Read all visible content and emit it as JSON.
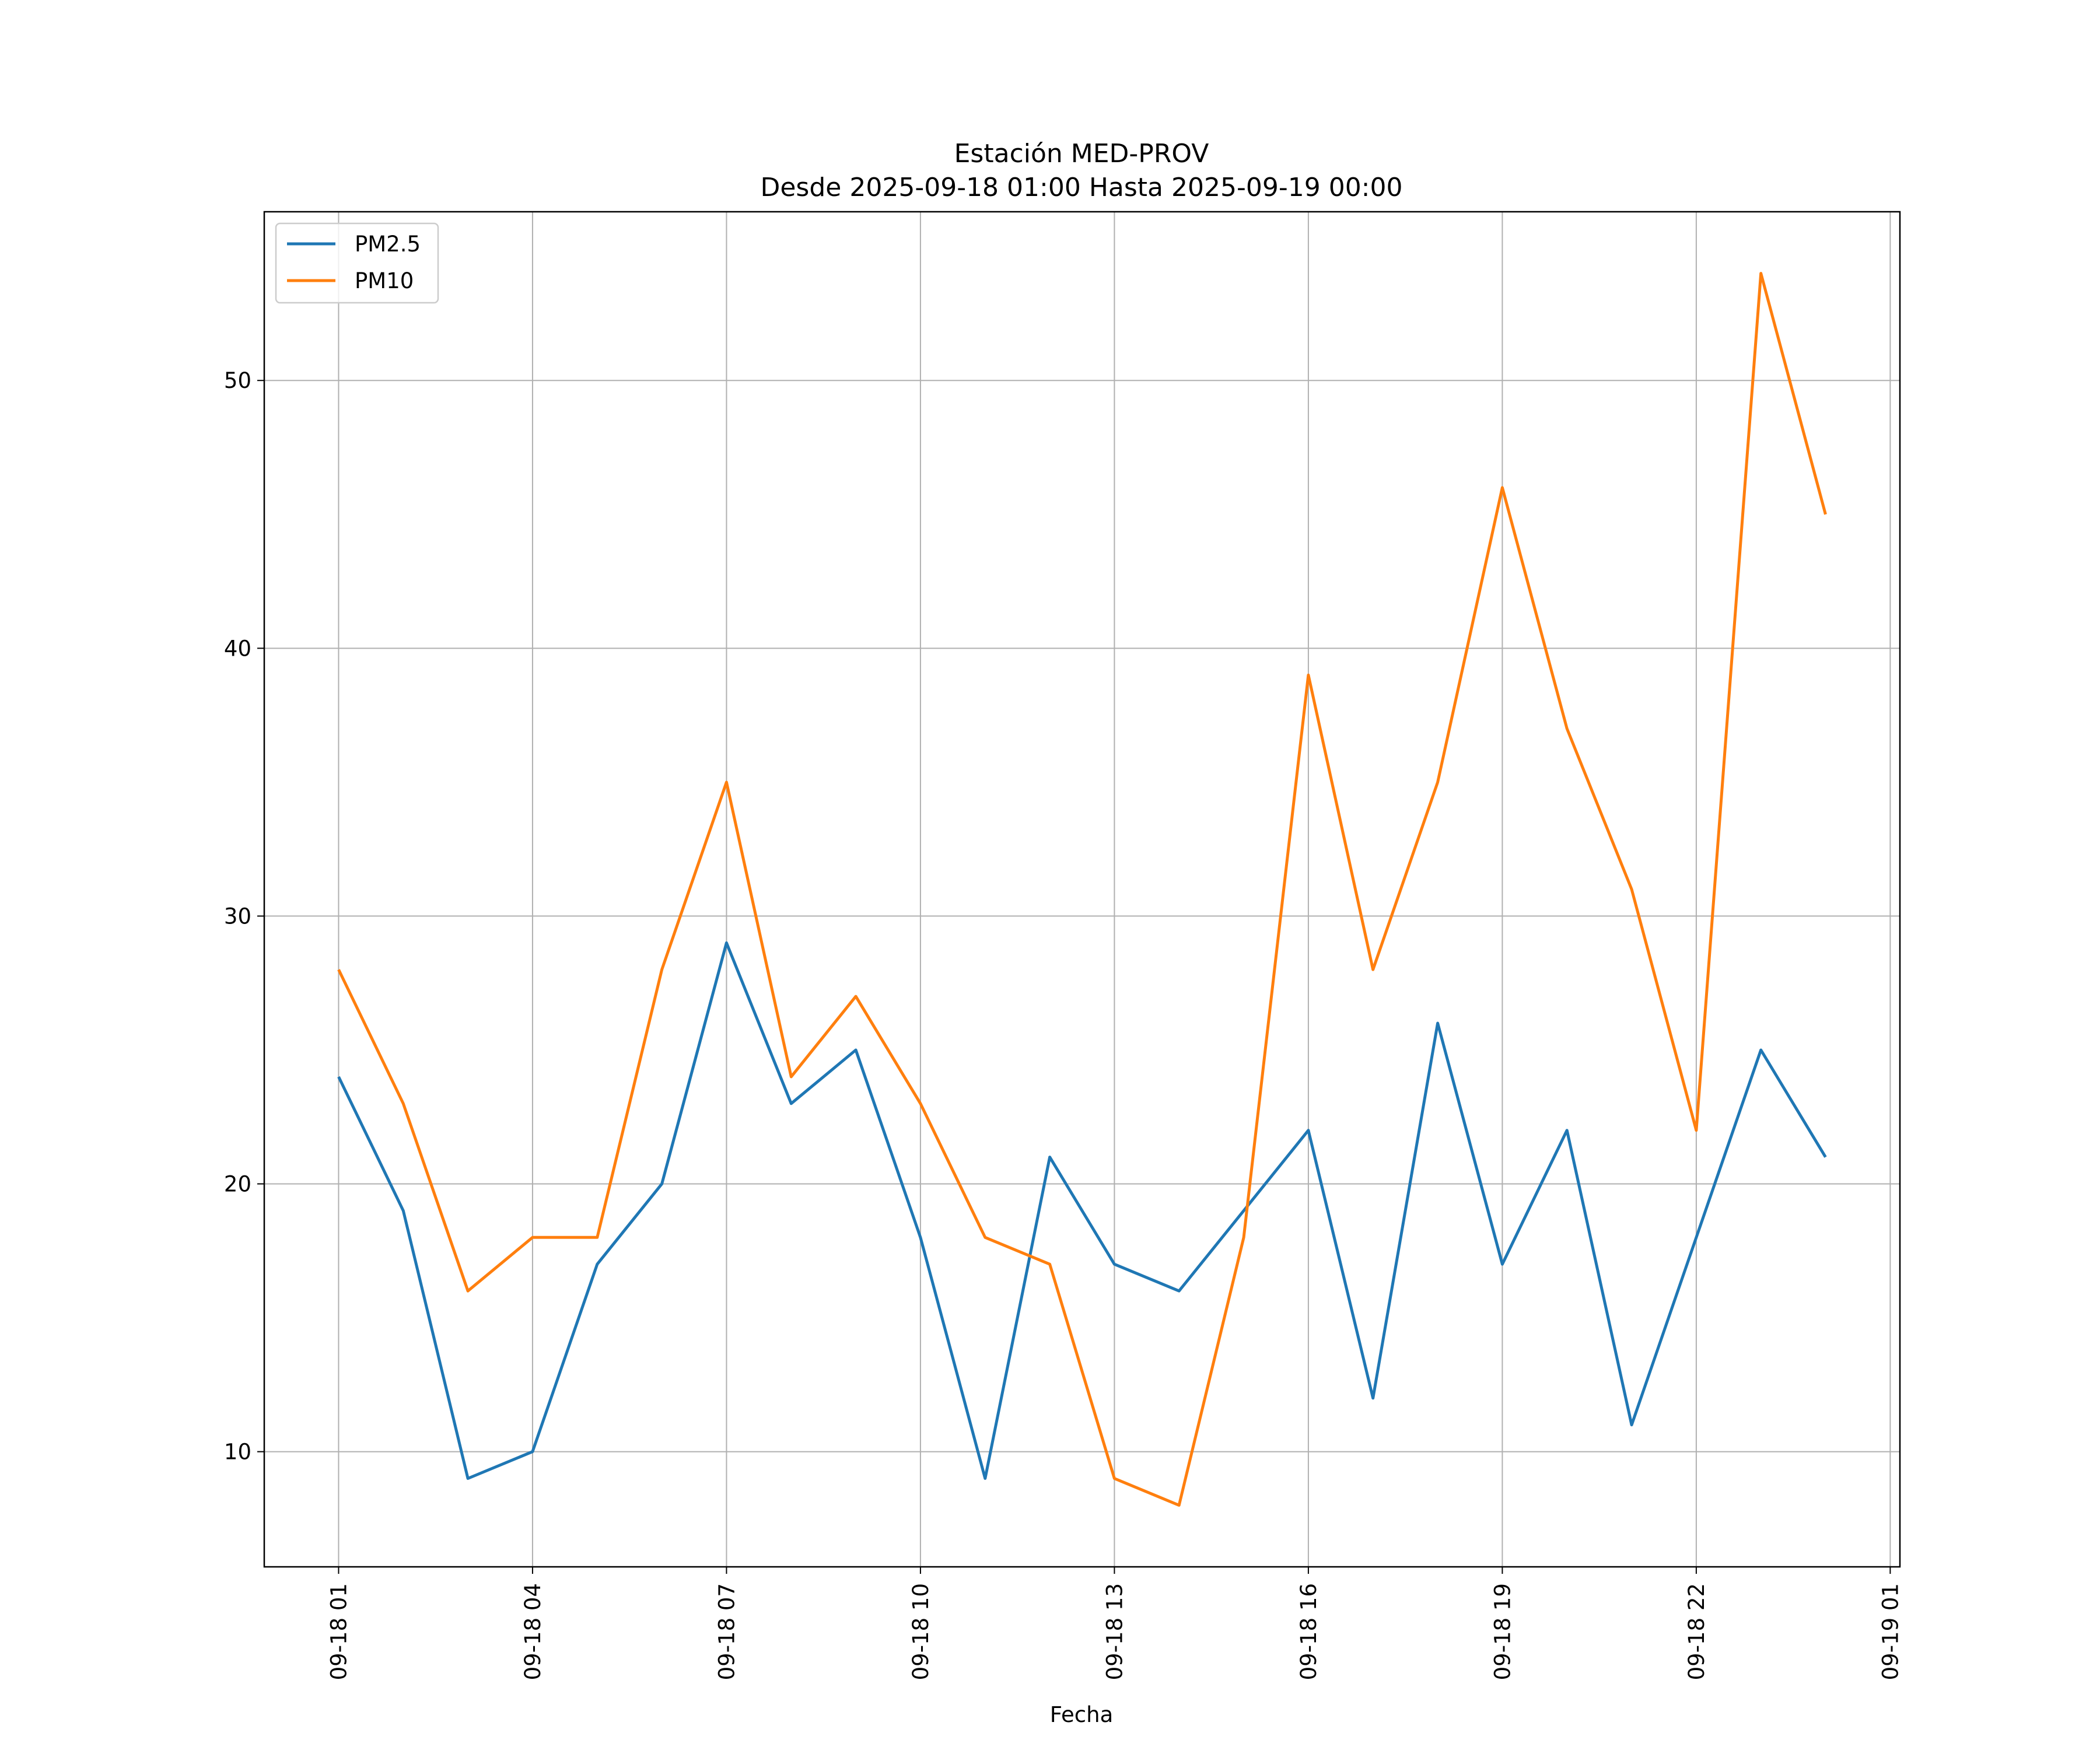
{
  "chart_data": {
    "type": "line",
    "title": "Estación MED-PROV",
    "subtitle": "Desde 2025-09-18 01:00 Hasta 2025-09-19 00:00",
    "xlabel": "Fecha",
    "ylabel": "",
    "x": [
      "2025-09-18 01:00",
      "2025-09-18 02:00",
      "2025-09-18 03:00",
      "2025-09-18 04:00",
      "2025-09-18 05:00",
      "2025-09-18 06:00",
      "2025-09-18 07:00",
      "2025-09-18 08:00",
      "2025-09-18 09:00",
      "2025-09-18 10:00",
      "2025-09-18 11:00",
      "2025-09-18 12:00",
      "2025-09-18 13:00",
      "2025-09-18 14:00",
      "2025-09-18 15:00",
      "2025-09-18 16:00",
      "2025-09-18 17:00",
      "2025-09-18 18:00",
      "2025-09-18 19:00",
      "2025-09-18 20:00",
      "2025-09-18 21:00",
      "2025-09-18 22:00",
      "2025-09-18 23:00",
      "2025-09-19 00:00"
    ],
    "series": [
      {
        "name": "PM2.5",
        "color": "#1f77b4",
        "values": [
          24,
          19,
          9,
          10,
          17,
          20,
          29,
          23,
          25,
          18,
          9,
          21,
          17,
          16,
          19,
          22,
          12,
          26,
          17,
          22,
          11,
          18,
          25,
          21
        ]
      },
      {
        "name": "PM10",
        "color": "#ff7f0e",
        "values": [
          28,
          23,
          16,
          18,
          18,
          28,
          35,
          24,
          27,
          23,
          18,
          17,
          9,
          8,
          18,
          39,
          28,
          35,
          46,
          37,
          31,
          22,
          54,
          45
        ]
      }
    ],
    "xticks": [
      {
        "hour": 0,
        "label": "09-18 01"
      },
      {
        "hour": 3,
        "label": "09-18 04"
      },
      {
        "hour": 6,
        "label": "09-18 07"
      },
      {
        "hour": 9,
        "label": "09-18 10"
      },
      {
        "hour": 12,
        "label": "09-18 13"
      },
      {
        "hour": 15,
        "label": "09-18 16"
      },
      {
        "hour": 18,
        "label": "09-18 19"
      },
      {
        "hour": 21,
        "label": "09-18 22"
      },
      {
        "hour": 24,
        "label": "09-19 01"
      }
    ],
    "yticks": [
      10,
      20,
      30,
      40,
      50
    ],
    "xlim_hours": [
      -1.15,
      24.15
    ],
    "ylim": [
      5.7,
      56.3
    ],
    "grid": true,
    "legend_position": "top-left"
  }
}
